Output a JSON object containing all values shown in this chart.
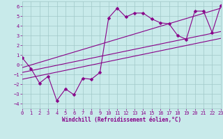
{
  "xlabel": "Windchill (Refroidissement éolien,°C)",
  "background_color": "#c8eaea",
  "grid_color": "#a0c8c8",
  "line_color": "#880088",
  "x_data": [
    0,
    1,
    2,
    3,
    4,
    5,
    6,
    7,
    8,
    9,
    10,
    11,
    12,
    13,
    14,
    15,
    16,
    17,
    18,
    19,
    20,
    21,
    22,
    23
  ],
  "scatter_y": [
    0.7,
    -0.4,
    -1.9,
    -1.2,
    -3.7,
    -2.5,
    -3.1,
    -1.4,
    -1.5,
    -0.8,
    4.8,
    5.8,
    4.9,
    5.3,
    5.3,
    4.7,
    4.3,
    4.2,
    3.0,
    2.6,
    5.5,
    5.5,
    3.3,
    6.1
  ],
  "line1_x": [
    0,
    23
  ],
  "line1_y": [
    -1.5,
    2.7
  ],
  "line2_x": [
    0,
    23
  ],
  "line2_y": [
    -0.8,
    3.4
  ],
  "line3_x": [
    0,
    23
  ],
  "line3_y": [
    -0.3,
    5.8
  ],
  "xlim": [
    0,
    23
  ],
  "ylim": [
    -4.5,
    6.5
  ],
  "yticks": [
    -4,
    -3,
    -2,
    -1,
    0,
    1,
    2,
    3,
    4,
    5,
    6
  ],
  "xticks": [
    0,
    1,
    2,
    3,
    4,
    5,
    6,
    7,
    8,
    9,
    10,
    11,
    12,
    13,
    14,
    15,
    16,
    17,
    18,
    19,
    20,
    21,
    22,
    23
  ],
  "tick_fontsize": 5,
  "xlabel_fontsize": 5.5,
  "marker_size": 2.5,
  "line_width": 0.8
}
